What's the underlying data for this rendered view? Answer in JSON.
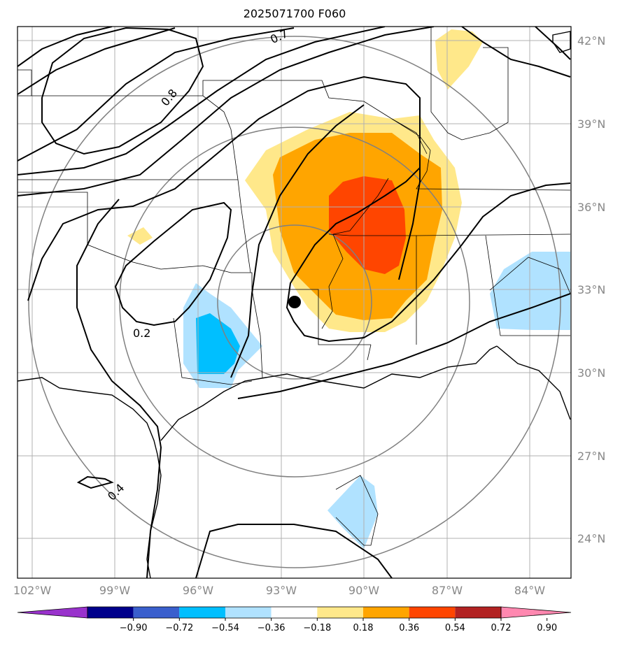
{
  "title": "2025071700 F060",
  "lat_labels": [
    "42°N",
    "39°N",
    "36°N",
    "33°N",
    "30°N",
    "27°N",
    "24°N"
  ],
  "lon_labels": [
    "102°W",
    "99°W",
    "96°W",
    "93°W",
    "90°W",
    "87°W",
    "84°W"
  ],
  "contour_labels": [
    "0.7",
    "0.8",
    "0.2",
    "0.4"
  ],
  "colorbar": {
    "ticks": [
      "−0.90",
      "−0.72",
      "−0.54",
      "−0.36",
      "−0.18",
      "0.18",
      "0.36",
      "0.54",
      "0.72",
      "0.90"
    ],
    "colors": [
      "#9932cc",
      "#00008b",
      "#3a5fcd",
      "#00bfff",
      "#b0e2ff",
      "#ffffff",
      "#ffe88a",
      "#ffa500",
      "#ff4500",
      "#b22222",
      "#ff88b0"
    ]
  },
  "colors": {
    "light_yellow": "#ffe88a",
    "orange": "#ffa500",
    "red_orange": "#ff4500",
    "light_blue": "#b0e2ff",
    "deep_sky_blue": "#00bfff",
    "grid": "#b0b0b0",
    "range_rings": "#808080"
  },
  "marker": "station-dot"
}
